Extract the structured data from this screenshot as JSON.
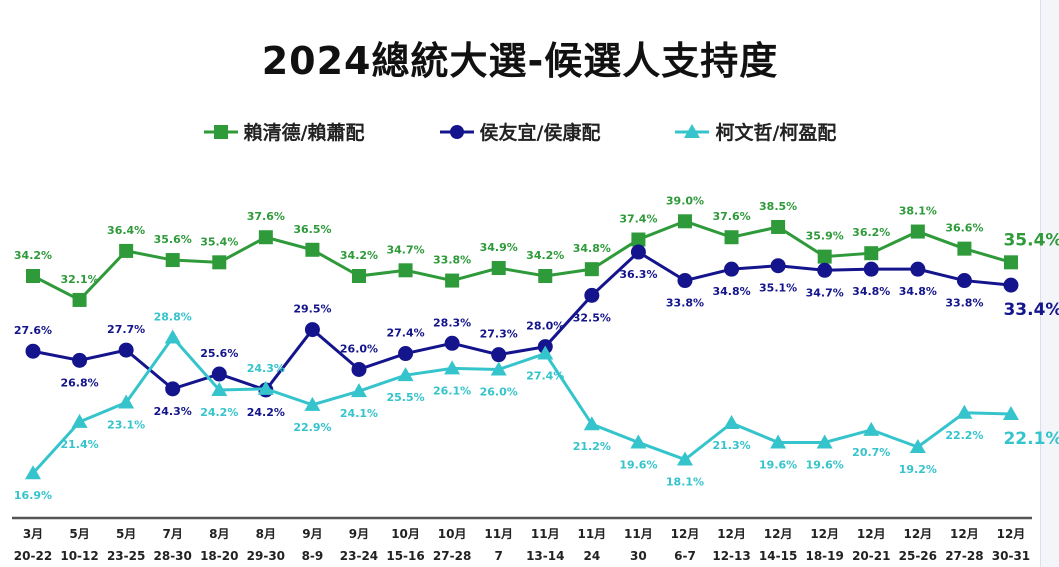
{
  "chart_data": {
    "type": "line",
    "title": "2024總統大選-候選人支持度",
    "categories": [
      [
        "3月",
        "20-22"
      ],
      [
        "5月",
        "10-12"
      ],
      [
        "5月",
        "23-25"
      ],
      [
        "7月",
        "28-30"
      ],
      [
        "8月",
        "18-20"
      ],
      [
        "8月",
        "29-30"
      ],
      [
        "9月",
        "8-9"
      ],
      [
        "9月",
        "23-24"
      ],
      [
        "10月",
        "15-16"
      ],
      [
        "10月",
        "27-28"
      ],
      [
        "11月",
        "7"
      ],
      [
        "11月",
        "13-14"
      ],
      [
        "11月",
        "24"
      ],
      [
        "11月",
        "30"
      ],
      [
        "12月",
        "6-7"
      ],
      [
        "12月",
        "12-13"
      ],
      [
        "12月",
        "14-15"
      ],
      [
        "12月",
        "18-19"
      ],
      [
        "12月",
        "20-21"
      ],
      [
        "12月",
        "25-26"
      ],
      [
        "12月",
        "27-28"
      ],
      [
        "12月",
        "30-31"
      ]
    ],
    "unit": "%",
    "ylim": [
      13,
      44.4
    ],
    "grid": false,
    "legend_position": "top",
    "series": [
      {
        "name": "賴清德/賴蕭配",
        "color": "#2e9a3a",
        "marker": "square",
        "values": [
          34.2,
          32.1,
          36.4,
          35.6,
          35.4,
          37.6,
          36.5,
          34.2,
          34.7,
          33.8,
          34.9,
          34.2,
          34.8,
          37.4,
          39.0,
          37.6,
          38.5,
          35.9,
          36.2,
          38.1,
          36.6,
          35.4
        ]
      },
      {
        "name": "侯友宜/侯康配",
        "color": "#14148c",
        "marker": "circle",
        "values": [
          27.6,
          26.8,
          27.7,
          24.3,
          25.6,
          24.2,
          29.5,
          26.0,
          27.4,
          28.3,
          27.3,
          28.0,
          32.5,
          36.3,
          33.8,
          34.8,
          35.1,
          34.7,
          34.8,
          34.8,
          33.8,
          33.4
        ]
      },
      {
        "name": "柯文哲/柯盈配",
        "color": "#35c4cc",
        "marker": "triangle",
        "values": [
          16.9,
          21.4,
          23.1,
          28.8,
          24.2,
          24.3,
          22.9,
          24.1,
          25.5,
          26.1,
          26.0,
          27.4,
          21.2,
          19.6,
          18.1,
          21.3,
          19.6,
          19.6,
          20.7,
          19.2,
          22.2,
          22.1
        ]
      }
    ]
  }
}
